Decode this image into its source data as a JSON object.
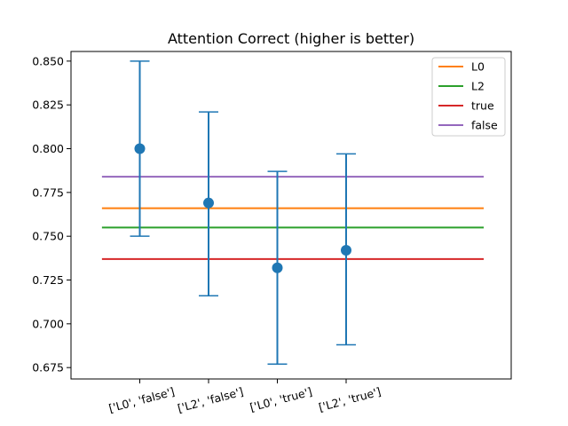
{
  "chart_data": {
    "type": "scatter",
    "title": "Attention Correct (higher is better)",
    "xlabel": "",
    "ylabel": "",
    "categories": [
      "['L0', 'false']",
      "['L2', 'false']",
      "['L0', 'true']",
      "['L2', 'true']"
    ],
    "points": [
      {
        "y": 0.8,
        "lower": 0.75,
        "upper": 0.85
      },
      {
        "y": 0.769,
        "lower": 0.716,
        "upper": 0.821
      },
      {
        "y": 0.732,
        "lower": 0.677,
        "upper": 0.787
      },
      {
        "y": 0.742,
        "lower": 0.688,
        "upper": 0.797
      }
    ],
    "point_color": "#1f77b4",
    "reference_lines": [
      {
        "name": "L0",
        "value": 0.766,
        "color": "#ff7f0e"
      },
      {
        "name": "L2",
        "value": 0.755,
        "color": "#2ca02c"
      },
      {
        "name": "true",
        "value": 0.737,
        "color": "#d62728"
      },
      {
        "name": "false",
        "value": 0.784,
        "color": "#9467bd"
      }
    ],
    "yticks": [
      "0.675",
      "0.700",
      "0.725",
      "0.750",
      "0.775",
      "0.800",
      "0.825",
      "0.850"
    ],
    "ylim": [
      0.6685,
      0.8555
    ],
    "xlim": [
      -1.0,
      5.4
    ],
    "grid": false,
    "legend": "top-right"
  }
}
